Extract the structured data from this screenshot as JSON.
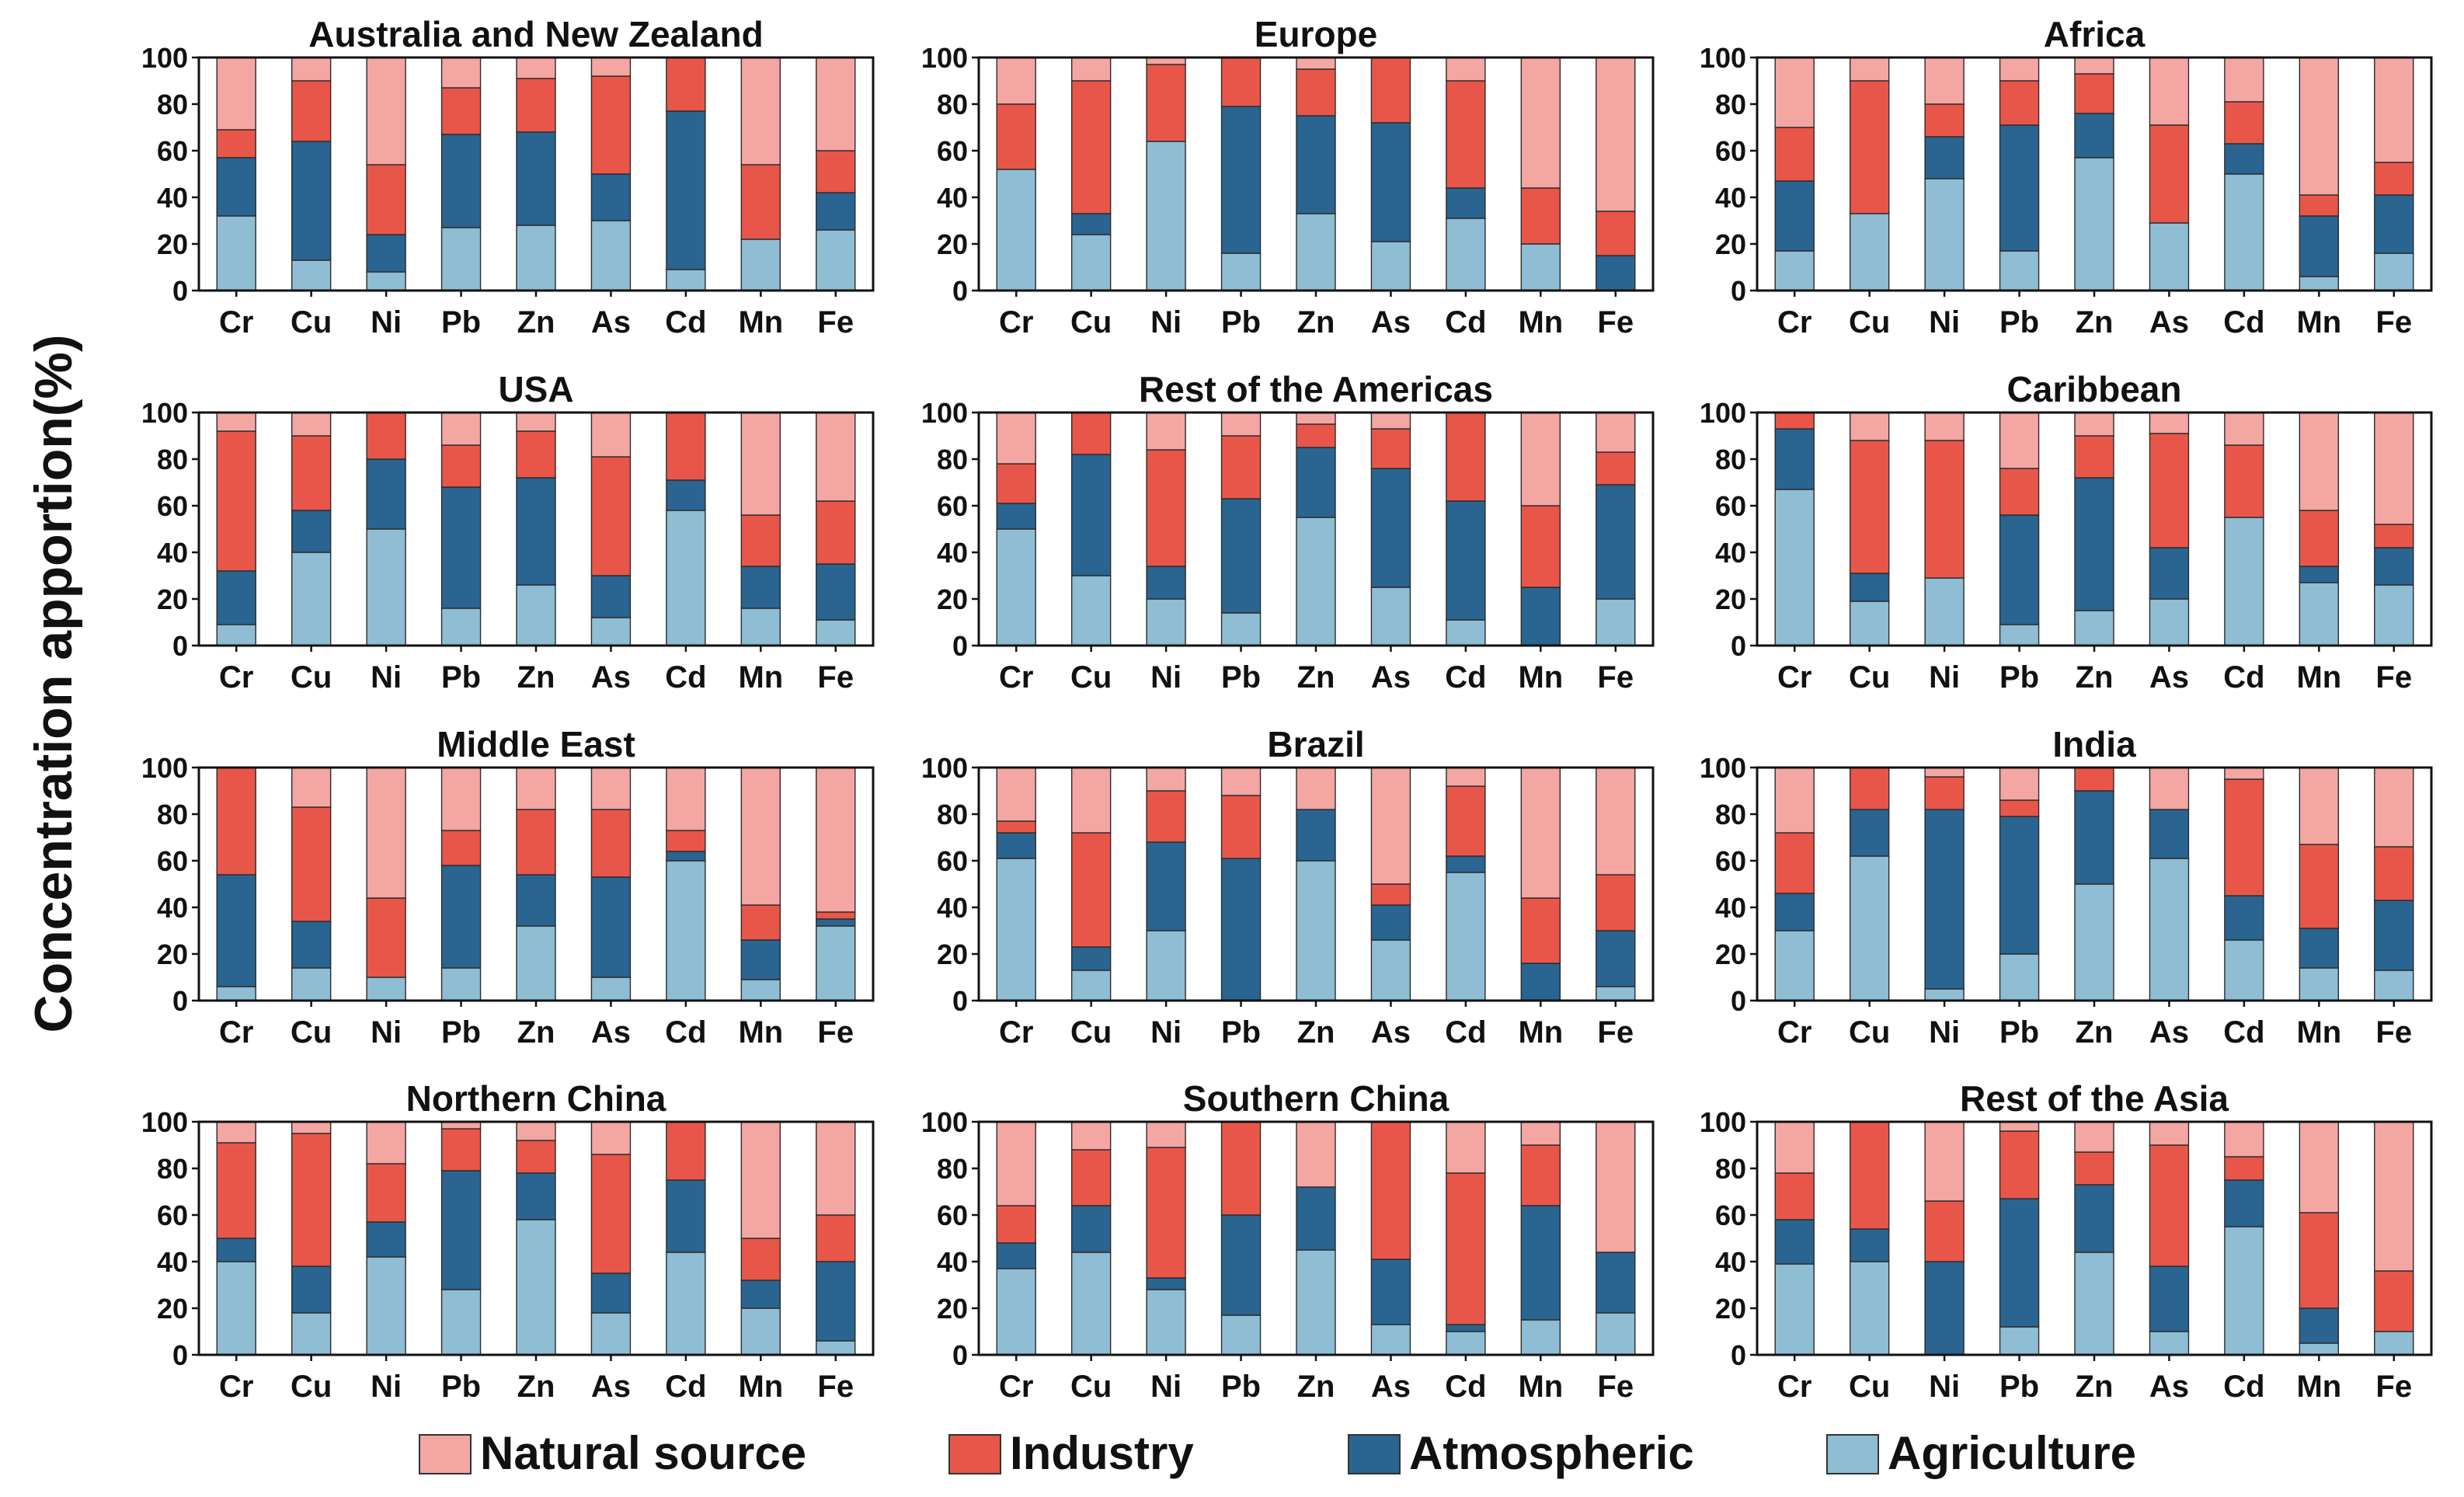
{
  "chart_data": {
    "type": "stacked-bar",
    "ylabel": "Concentration apportion(%)",
    "ylim": [
      0,
      100
    ],
    "yticks": [
      "0",
      "20",
      "40",
      "60",
      "80",
      "100"
    ],
    "categories": [
      "Cr",
      "Cu",
      "Ni",
      "Pb",
      "Zn",
      "As",
      "Cd",
      "Mn",
      "Fe"
    ],
    "series_names": [
      "Agriculture",
      "Atmospheric",
      "Industry",
      "Natural source"
    ],
    "series_colors": [
      "#8fbdd4",
      "#2a6490",
      "#e8564a",
      "#f4a6a2"
    ],
    "legend": [
      {
        "label": "Natural source",
        "color": "#f4a6a2"
      },
      {
        "label": "Industry",
        "color": "#e8564a"
      },
      {
        "label": "Atmospheric",
        "color": "#2a6490"
      },
      {
        "label": "Agriculture",
        "color": "#8fbdd4"
      }
    ],
    "panels": [
      {
        "title": "Australia and New Zealand",
        "agriculture": [
          32,
          13,
          8,
          27,
          28,
          30,
          9,
          22,
          26
        ],
        "atmospheric": [
          57,
          64,
          24,
          67,
          68,
          50,
          77,
          22,
          42
        ],
        "industry": [
          69,
          90,
          54,
          87,
          91,
          92,
          100,
          54,
          60
        ]
      },
      {
        "title": "Europe",
        "agriculture": [
          52,
          24,
          64,
          16,
          33,
          21,
          31,
          20,
          0
        ],
        "atmospheric": [
          52,
          33,
          64,
          79,
          75,
          72,
          44,
          20,
          15
        ],
        "industry": [
          80,
          90,
          97,
          100,
          95,
          100,
          90,
          44,
          34
        ]
      },
      {
        "title": "Africa",
        "agriculture": [
          17,
          33,
          48,
          17,
          57,
          29,
          50,
          6,
          16
        ],
        "atmospheric": [
          47,
          33,
          66,
          71,
          76,
          29,
          63,
          32,
          41
        ],
        "industry": [
          70,
          90,
          80,
          90,
          93,
          71,
          81,
          41,
          55
        ]
      },
      {
        "title": "USA",
        "agriculture": [
          9,
          40,
          50,
          16,
          26,
          12,
          58,
          16,
          11
        ],
        "atmospheric": [
          32,
          58,
          80,
          68,
          72,
          30,
          71,
          34,
          35
        ],
        "industry": [
          92,
          90,
          100,
          86,
          92,
          81,
          100,
          56,
          62
        ]
      },
      {
        "title": "Rest of the Americas",
        "agriculture": [
          50,
          30,
          20,
          14,
          55,
          25,
          11,
          0,
          20
        ],
        "atmospheric": [
          61,
          82,
          34,
          63,
          85,
          76,
          62,
          25,
          69
        ],
        "industry": [
          78,
          100,
          84,
          90,
          95,
          93,
          100,
          60,
          83
        ]
      },
      {
        "title": "Caribbean",
        "agriculture": [
          67,
          19,
          29,
          9,
          15,
          20,
          55,
          27,
          26
        ],
        "atmospheric": [
          93,
          31,
          29,
          56,
          72,
          42,
          55,
          34,
          42
        ],
        "industry": [
          100,
          88,
          88,
          76,
          90,
          91,
          86,
          58,
          52
        ]
      },
      {
        "title": "Middle East",
        "agriculture": [
          6,
          14,
          10,
          14,
          32,
          10,
          60,
          9,
          32
        ],
        "atmospheric": [
          54,
          34,
          10,
          58,
          54,
          53,
          64,
          26,
          35
        ],
        "industry": [
          100,
          83,
          44,
          73,
          82,
          82,
          73,
          41,
          38
        ]
      },
      {
        "title": "Brazil",
        "agriculture": [
          61,
          13,
          30,
          0,
          60,
          26,
          55,
          0,
          6
        ],
        "atmospheric": [
          72,
          23,
          68,
          61,
          82,
          41,
          62,
          16,
          30
        ],
        "industry": [
          77,
          72,
          90,
          88,
          82,
          50,
          92,
          44,
          54
        ]
      },
      {
        "title": "India",
        "agriculture": [
          30,
          62,
          5,
          20,
          50,
          61,
          26,
          14,
          13
        ],
        "atmospheric": [
          46,
          82,
          82,
          79,
          90,
          82,
          45,
          31,
          43
        ],
        "industry": [
          72,
          100,
          96,
          86,
          100,
          82,
          95,
          67,
          66
        ]
      },
      {
        "title": "Northern China",
        "agriculture": [
          40,
          18,
          42,
          28,
          58,
          18,
          44,
          20,
          6
        ],
        "atmospheric": [
          50,
          38,
          57,
          79,
          78,
          35,
          75,
          32,
          40
        ],
        "industry": [
          91,
          95,
          82,
          97,
          92,
          86,
          100,
          50,
          60
        ]
      },
      {
        "title": "Southern China",
        "agriculture": [
          37,
          44,
          28,
          17,
          45,
          13,
          10,
          15,
          18
        ],
        "atmospheric": [
          48,
          64,
          33,
          60,
          72,
          41,
          13,
          64,
          44
        ],
        "industry": [
          64,
          88,
          89,
          100,
          72,
          100,
          78,
          90,
          44
        ]
      },
      {
        "title": "Rest of the Asia",
        "agriculture": [
          39,
          40,
          0,
          12,
          44,
          10,
          55,
          5,
          10
        ],
        "atmospheric": [
          58,
          54,
          40,
          67,
          73,
          38,
          75,
          20,
          10
        ],
        "industry": [
          78,
          100,
          66,
          96,
          87,
          90,
          85,
          61,
          36
        ]
      }
    ]
  }
}
